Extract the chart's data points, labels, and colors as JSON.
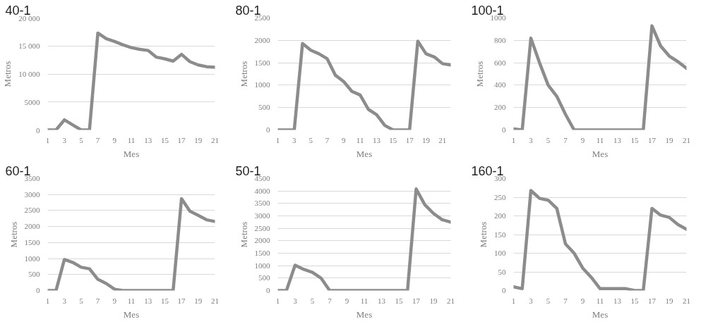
{
  "chart_data": [
    {
      "type": "line",
      "title": "40-1",
      "xlabel": "Mes",
      "ylabel": "Metros",
      "x": [
        1,
        2,
        3,
        4,
        5,
        6,
        7,
        8,
        9,
        10,
        11,
        12,
        13,
        14,
        15,
        16,
        17,
        18,
        19,
        20,
        21
      ],
      "series": [
        {
          "color": "#8c8c8c",
          "values": [
            0,
            0,
            1800,
            900,
            0,
            0,
            17300,
            16300,
            15800,
            15200,
            14700,
            14400,
            14200,
            13000,
            12700,
            12300,
            13500,
            12200,
            11600,
            11300,
            11200
          ]
        }
      ],
      "xlim": [
        1,
        21
      ],
      "xticks": [
        1,
        3,
        5,
        7,
        9,
        11,
        13,
        15,
        17,
        19,
        21
      ],
      "ylim": [
        0,
        20000
      ],
      "yticks": [
        0,
        5000,
        {
          "value": 10000,
          "label": "10 000"
        },
        {
          "value": 15000,
          "label": "15 000"
        },
        {
          "value": 20000,
          "label": "20 000"
        }
      ],
      "grid": "y",
      "marker": "none",
      "line_style": "solid"
    },
    {
      "type": "line",
      "title": "80-1",
      "xlabel": "Mes",
      "ylabel": "Metros",
      "x": [
        1,
        2,
        3,
        4,
        5,
        6,
        7,
        8,
        9,
        10,
        11,
        12,
        13,
        14,
        15,
        16,
        17,
        18,
        19,
        20,
        21,
        22
      ],
      "series": [
        {
          "color": "#8c8c8c",
          "values": [
            0,
            0,
            0,
            1930,
            1780,
            1700,
            1590,
            1220,
            1080,
            860,
            780,
            460,
            340,
            100,
            0,
            0,
            0,
            1980,
            1700,
            1630,
            1480,
            1450
          ]
        }
      ],
      "xlim": [
        1,
        22
      ],
      "xticks": [
        1,
        3,
        5,
        7,
        9,
        11,
        13,
        15,
        17,
        19,
        21
      ],
      "ylim": [
        0,
        2500
      ],
      "yticks": [
        0,
        500,
        1000,
        1500,
        2000,
        2500
      ],
      "grid": "y",
      "marker": "none",
      "line_style": "solid"
    },
    {
      "type": "line",
      "title": "100-1",
      "xlabel": "Mes",
      "ylabel": "Metros",
      "x": [
        1,
        2,
        3,
        4,
        5,
        6,
        7,
        8,
        9,
        10,
        11,
        12,
        13,
        14,
        15,
        16,
        17,
        18,
        19,
        20,
        21
      ],
      "series": [
        {
          "color": "#8c8c8c",
          "values": [
            10,
            0,
            820,
            600,
            400,
            300,
            140,
            0,
            0,
            0,
            0,
            0,
            0,
            0,
            0,
            0,
            930,
            750,
            660,
            610,
            550
          ]
        }
      ],
      "xlim": [
        1,
        21
      ],
      "xticks": [
        1,
        3,
        5,
        7,
        9,
        11,
        13,
        15,
        17,
        19,
        21
      ],
      "ylim": [
        0,
        1000
      ],
      "yticks": [
        0,
        200,
        400,
        600,
        800,
        1000
      ],
      "grid": "y",
      "marker": "none",
      "line_style": "solid"
    },
    {
      "type": "line",
      "title": "60-1",
      "xlabel": "Mes",
      "ylabel": "Metros",
      "x": [
        1,
        2,
        3,
        4,
        5,
        6,
        7,
        8,
        9,
        10,
        11,
        12,
        13,
        14,
        15,
        16,
        17,
        18,
        19,
        20,
        21
      ],
      "series": [
        {
          "color": "#8c8c8c",
          "values": [
            0,
            0,
            970,
            880,
            730,
            680,
            350,
            220,
            40,
            0,
            0,
            0,
            0,
            0,
            0,
            0,
            2870,
            2480,
            2350,
            2210,
            2160
          ]
        }
      ],
      "xlim": [
        1,
        21
      ],
      "xticks": [
        1,
        3,
        5,
        7,
        9,
        11,
        13,
        15,
        17,
        19,
        21
      ],
      "ylim": [
        0,
        3500
      ],
      "yticks": [
        0,
        500,
        1000,
        1500,
        2000,
        2500,
        3000,
        3500
      ],
      "grid": "y",
      "marker": "none",
      "line_style": "solid"
    },
    {
      "type": "line",
      "title": "50-1",
      "xlabel": "Mes",
      "ylabel": "Metros",
      "x": [
        1,
        2,
        3,
        4,
        5,
        6,
        7,
        8,
        9,
        10,
        11,
        12,
        13,
        14,
        15,
        16,
        17,
        18,
        19,
        20,
        21
      ],
      "series": [
        {
          "color": "#8c8c8c",
          "values": [
            0,
            0,
            1020,
            850,
            730,
            500,
            0,
            0,
            0,
            0,
            0,
            0,
            0,
            0,
            0,
            0,
            4080,
            3450,
            3100,
            2850,
            2750
          ]
        }
      ],
      "xlim": [
        1,
        21
      ],
      "xticks": [
        1,
        3,
        5,
        7,
        9,
        11,
        13,
        15,
        17,
        19,
        21
      ],
      "ylim": [
        0,
        4500
      ],
      "yticks": [
        0,
        500,
        1000,
        1500,
        2000,
        2500,
        3000,
        3500,
        4000,
        4500
      ],
      "grid": "y",
      "marker": "none",
      "line_style": "solid"
    },
    {
      "type": "line",
      "title": "160-1",
      "xlabel": "Mes",
      "ylabel": "Metros",
      "x": [
        1,
        2,
        3,
        4,
        5,
        6,
        7,
        8,
        9,
        10,
        11,
        12,
        13,
        14,
        15,
        16,
        17,
        18,
        19,
        20,
        21
      ],
      "series": [
        {
          "color": "#8c8c8c",
          "values": [
            10,
            5,
            268,
            247,
            242,
            220,
            125,
            100,
            60,
            35,
            5,
            5,
            5,
            5,
            0,
            0,
            220,
            202,
            196,
            177,
            164
          ]
        }
      ],
      "xlim": [
        1,
        21
      ],
      "xticks": [
        1,
        3,
        5,
        7,
        9,
        11,
        13,
        15,
        17,
        19,
        21
      ],
      "ylim": [
        0,
        300
      ],
      "yticks": [
        0,
        50,
        100,
        150,
        200,
        250,
        300
      ],
      "grid": "y",
      "marker": "none",
      "line_style": "solid"
    }
  ]
}
